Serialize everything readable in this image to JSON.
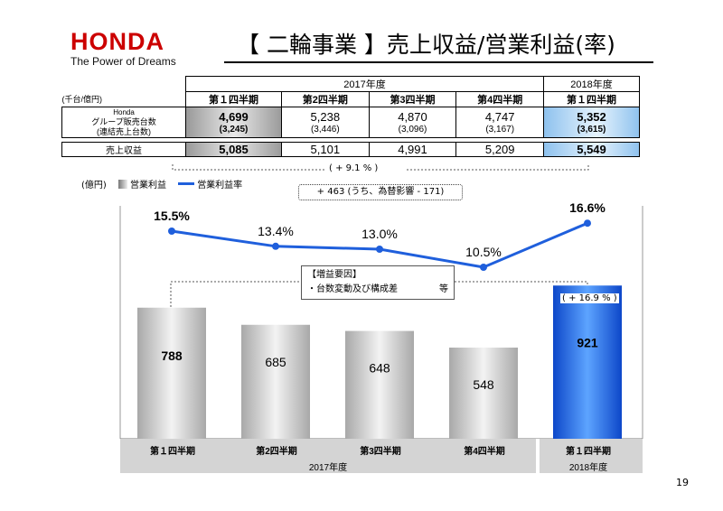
{
  "header": {
    "logo": "HONDA",
    "tagline": "The Power of Dreams",
    "title": "【 二輪事業 】売上収益/営業利益(率)"
  },
  "table": {
    "year_2017": "2017年度",
    "year_2018": "2018年度",
    "unit": "(千台/億円)",
    "quarters": [
      "第１四半期",
      "第2四半期",
      "第3四半期",
      "第4四半期",
      "第１四半期"
    ],
    "row1_label_top": "Honda",
    "row1_label": "グループ販売台数",
    "row2_label": "(連結売上台数)",
    "row3_label": "売上収益",
    "group_sales": [
      "4,699",
      "5,238",
      "4,870",
      "4,747",
      "5,352"
    ],
    "consolidated_units": [
      "(3,245)",
      "(3,446)",
      "(3,096)",
      "(3,167)",
      "(3,615)"
    ],
    "revenue": [
      "5,085",
      "5,101",
      "4,991",
      "5,209",
      "5,549"
    ]
  },
  "annotations": {
    "revenue_change": "( + 9.1 % )",
    "profit_change_detail": "+ 463 (うち、為替影響 - 171)",
    "factor_title": "【増益要因】",
    "factor_item": "・台数変動及び構成差",
    "factor_suffix": "等",
    "profit_change": "( + 16.9 % )"
  },
  "page_number": "19",
  "colors": {
    "honda_red": "#cc0000",
    "line_blue": "#1f5fdc",
    "bar_blue": "#1e63e0",
    "bar_gray": "#bdbdbd"
  },
  "chart_data": {
    "type": "bar",
    "unit_label": "(億円)",
    "categories": [
      "第１四半期",
      "第2四半期",
      "第3四半期",
      "第4四半期",
      "第１四半期"
    ],
    "year_groups": [
      {
        "label": "2017年度",
        "count": 4
      },
      {
        "label": "2018年度",
        "count": 1
      }
    ],
    "series": [
      {
        "name": "営業利益",
        "type": "bar",
        "values": [
          788,
          685,
          648,
          548,
          921
        ],
        "labels": [
          "788",
          "685",
          "648",
          "548",
          "921"
        ]
      },
      {
        "name": "営業利益率",
        "type": "line",
        "values": [
          15.5,
          13.4,
          13.0,
          10.5,
          16.6
        ],
        "labels": [
          "15.5%",
          "13.4%",
          "13.0%",
          "10.5%",
          "16.6%"
        ]
      }
    ],
    "bar_ylim": [
      0,
      1400
    ],
    "line_ylim": [
      0,
      25
    ]
  }
}
